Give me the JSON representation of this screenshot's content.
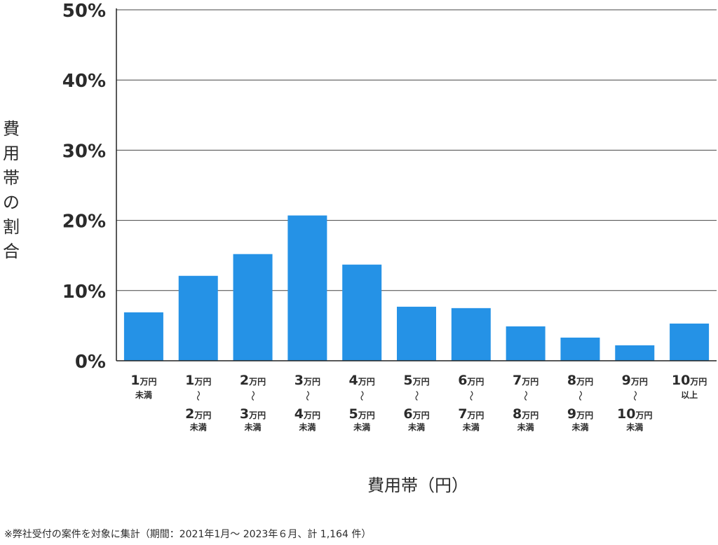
{
  "chart_data": {
    "type": "bar",
    "title": "",
    "xlabel": "費用帯（円）",
    "ylabel": "費用帯の割合",
    "ylim": [
      0,
      50
    ],
    "y_ticks": [
      "0%",
      "10%",
      "20%",
      "30%",
      "40%",
      "50%"
    ],
    "y_tick_values": [
      0,
      10,
      20,
      30,
      40,
      50
    ],
    "grid": true,
    "bar_color": "#2592e6",
    "categories": [
      "1万円未満",
      "1万円〜2万円未満",
      "2万円〜3万円未満",
      "3万円〜4万円未満",
      "4万円〜5万円未満",
      "5万円〜6万円未満",
      "6万円〜7万円未満",
      "7万円〜8万円未満",
      "8万円〜9万円未満",
      "9万円〜10万円未満",
      "10万円以上"
    ],
    "category_labels": [
      {
        "from_num": "1",
        "from_unit": "万円",
        "to_num": "",
        "to_unit": "",
        "suffix": "未満"
      },
      {
        "from_num": "1",
        "from_unit": "万円",
        "to_num": "2",
        "to_unit": "万円",
        "suffix": "未満"
      },
      {
        "from_num": "2",
        "from_unit": "万円",
        "to_num": "3",
        "to_unit": "万円",
        "suffix": "未満"
      },
      {
        "from_num": "3",
        "from_unit": "万円",
        "to_num": "4",
        "to_unit": "万円",
        "suffix": "未満"
      },
      {
        "from_num": "4",
        "from_unit": "万円",
        "to_num": "5",
        "to_unit": "万円",
        "suffix": "未満"
      },
      {
        "from_num": "5",
        "from_unit": "万円",
        "to_num": "6",
        "to_unit": "万円",
        "suffix": "未満"
      },
      {
        "from_num": "6",
        "from_unit": "万円",
        "to_num": "7",
        "to_unit": "万円",
        "suffix": "未満"
      },
      {
        "from_num": "7",
        "from_unit": "万円",
        "to_num": "8",
        "to_unit": "万円",
        "suffix": "未満"
      },
      {
        "from_num": "8",
        "from_unit": "万円",
        "to_num": "9",
        "to_unit": "万円",
        "suffix": "未満"
      },
      {
        "from_num": "9",
        "from_unit": "万円",
        "to_num": "10",
        "to_unit": "万円",
        "suffix": "未満"
      },
      {
        "from_num": "10",
        "from_unit": "万円",
        "to_num": "",
        "to_unit": "",
        "suffix": "以上"
      }
    ],
    "range_separator": "〜",
    "values": [
      6.9,
      12.1,
      15.2,
      20.7,
      13.7,
      7.7,
      7.5,
      4.9,
      3.3,
      2.2,
      5.3
    ]
  },
  "footnote": "※弊社受付の案件を対象に集計（期間：2021年1月～ 2023年６月、計 1,164 件）"
}
